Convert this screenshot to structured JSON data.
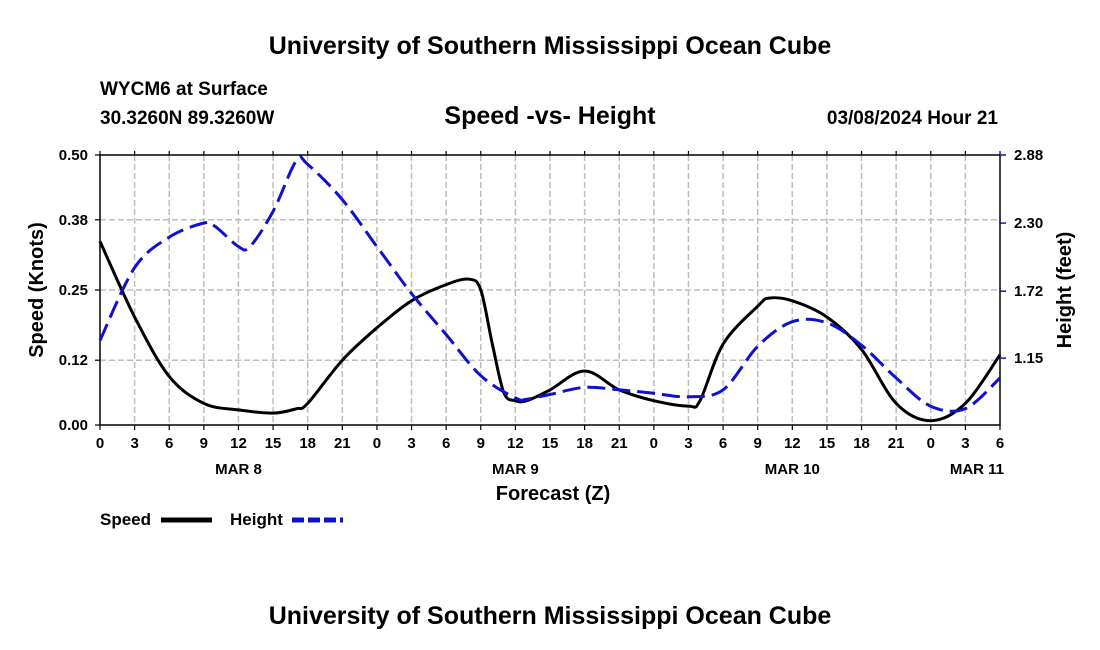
{
  "page": {
    "title_top": "University of Southern Mississippi Ocean Cube",
    "title_bottom": "University of Southern Mississippi Ocean Cube",
    "station": "WYCM6 at Surface",
    "location": "30.3260N  89.3260W",
    "datetime": "03/08/2024 Hour 21"
  },
  "colors": {
    "speed": "#000000",
    "height": "#1010d0",
    "grid": "#bdbdbd"
  },
  "chart_data": {
    "type": "line",
    "title": "Speed -vs- Height",
    "xlabel": "Forecast (Z)",
    "ylabel_left": "Speed (Knots)",
    "ylabel_right": "Height (feet)",
    "x_unit": "hours since MAR 8 00Z",
    "xlim": [
      0,
      78
    ],
    "ylim_left": [
      0,
      0.5
    ],
    "ylim_right": [
      0.58,
      2.88
    ],
    "x_tick_labels": [
      "0",
      "3",
      "6",
      "9",
      "12",
      "15",
      "18",
      "21",
      "0",
      "3",
      "6",
      "9",
      "12",
      "15",
      "18",
      "21",
      "0",
      "3",
      "6",
      "9",
      "12",
      "15",
      "18",
      "21",
      "0",
      "3",
      "6"
    ],
    "day_labels": [
      {
        "label": "MAR 8",
        "x": 12
      },
      {
        "label": "MAR 9",
        "x": 36
      },
      {
        "label": "MAR 10",
        "x": 60
      },
      {
        "label": "MAR 11",
        "x": 76
      }
    ],
    "y_left_ticks": [
      "0.00",
      "0.12",
      "0.25",
      "0.38",
      "0.50"
    ],
    "y_right_ticks": [
      "1.15",
      "1.72",
      "2.30",
      "2.88"
    ],
    "series": [
      {
        "name": "Speed",
        "axis": "left",
        "style": "solid",
        "x": [
          0,
          3,
          6,
          9,
          12,
          15,
          17,
          18,
          21,
          24,
          27,
          30,
          32,
          33,
          34,
          35,
          36,
          37,
          39,
          42,
          45,
          48,
          51,
          52,
          54,
          57,
          58,
          60,
          63,
          66,
          69,
          72,
          75,
          78
        ],
        "y": [
          0.34,
          0.2,
          0.09,
          0.04,
          0.028,
          0.022,
          0.03,
          0.04,
          0.12,
          0.18,
          0.23,
          0.26,
          0.27,
          0.25,
          0.15,
          0.06,
          0.045,
          0.045,
          0.065,
          0.1,
          0.065,
          0.045,
          0.035,
          0.045,
          0.15,
          0.22,
          0.235,
          0.23,
          0.2,
          0.14,
          0.04,
          0.008,
          0.04,
          0.13
        ]
      },
      {
        "name": "Height",
        "axis": "right",
        "style": "dashed",
        "x": [
          0,
          3,
          6,
          9,
          10,
          12,
          13,
          15,
          17,
          18,
          21,
          24,
          27,
          30,
          33,
          36,
          37,
          39,
          42,
          45,
          48,
          51,
          54,
          57,
          60,
          63,
          66,
          69,
          72,
          75,
          78
        ],
        "y": [
          1.3,
          1.92,
          2.18,
          2.3,
          2.27,
          2.1,
          2.1,
          2.4,
          2.83,
          2.8,
          2.5,
          2.1,
          1.7,
          1.35,
          1.0,
          0.81,
          0.8,
          0.84,
          0.9,
          0.88,
          0.85,
          0.82,
          0.88,
          1.25,
          1.46,
          1.45,
          1.26,
          0.98,
          0.74,
          0.72,
          0.98
        ]
      }
    ],
    "legend": [
      {
        "label": "Speed",
        "style": "solid"
      },
      {
        "label": "Height",
        "style": "dashed"
      }
    ]
  }
}
